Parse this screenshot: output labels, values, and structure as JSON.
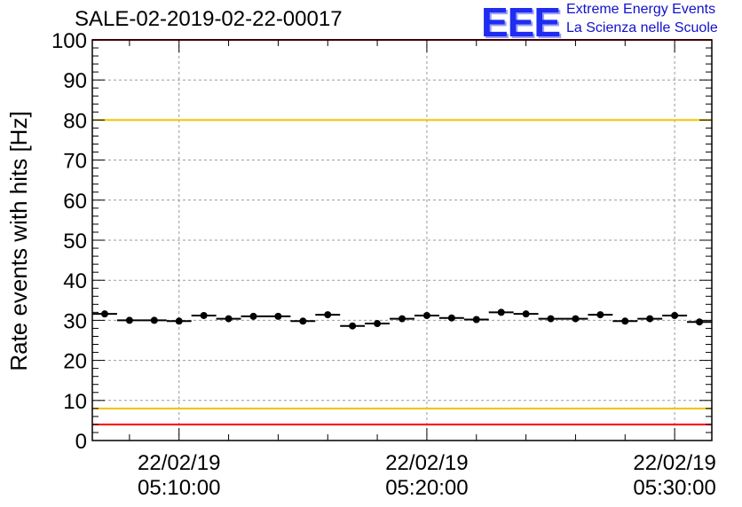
{
  "title": "SALE-02-2019-02-22-00017",
  "logo": {
    "mark": "EEE",
    "line1": "Extreme Energy Events",
    "line2": "La Scienza nelle Scuole"
  },
  "chart_data": {
    "type": "scatter",
    "title": "SALE-02-2019-02-22-00017",
    "xlabel": "",
    "ylabel": "Rate events with hits [Hz]",
    "ylim": [
      0,
      100
    ],
    "yticks": [
      0,
      10,
      20,
      30,
      40,
      50,
      60,
      70,
      80,
      90,
      100
    ],
    "xlim": [
      "22/02/19 05:06:30",
      "22/02/19 05:31:30"
    ],
    "xticks": [
      {
        "date": "22/02/19",
        "time": "05:10:00"
      },
      {
        "date": "22/02/19",
        "time": "05:20:00"
      },
      {
        "date": "22/02/19",
        "time": "05:30:00"
      }
    ],
    "grid": true,
    "points": [
      {
        "x": "05:07:00",
        "y": 31.6
      },
      {
        "x": "05:08:00",
        "y": 30.0
      },
      {
        "x": "05:09:00",
        "y": 30.0
      },
      {
        "x": "05:10:00",
        "y": 29.8
      },
      {
        "x": "05:11:00",
        "y": 31.2
      },
      {
        "x": "05:12:00",
        "y": 30.4
      },
      {
        "x": "05:13:00",
        "y": 31.0
      },
      {
        "x": "05:14:00",
        "y": 31.0
      },
      {
        "x": "05:15:00",
        "y": 29.8
      },
      {
        "x": "05:16:00",
        "y": 31.4
      },
      {
        "x": "05:17:00",
        "y": 28.6
      },
      {
        "x": "05:18:00",
        "y": 29.2
      },
      {
        "x": "05:19:00",
        "y": 30.4
      },
      {
        "x": "05:20:00",
        "y": 31.2
      },
      {
        "x": "05:21:00",
        "y": 30.6
      },
      {
        "x": "05:22:00",
        "y": 30.2
      },
      {
        "x": "05:23:00",
        "y": 32.0
      },
      {
        "x": "05:24:00",
        "y": 31.6
      },
      {
        "x": "05:25:00",
        "y": 30.4
      },
      {
        "x": "05:26:00",
        "y": 30.4
      },
      {
        "x": "05:27:00",
        "y": 31.4
      },
      {
        "x": "05:28:00",
        "y": 29.8
      },
      {
        "x": "05:29:00",
        "y": 30.4
      },
      {
        "x": "05:30:00",
        "y": 31.2
      },
      {
        "x": "05:31:00",
        "y": 29.6
      }
    ],
    "bin_width_minutes": 1,
    "reference_lines": [
      {
        "y": 100,
        "color": "#ff0000"
      },
      {
        "y": 80,
        "color": "#f2c200"
      },
      {
        "y": 8,
        "color": "#f2c200"
      },
      {
        "y": 4,
        "color": "#ff0000"
      }
    ],
    "marker_color": "#000000"
  }
}
